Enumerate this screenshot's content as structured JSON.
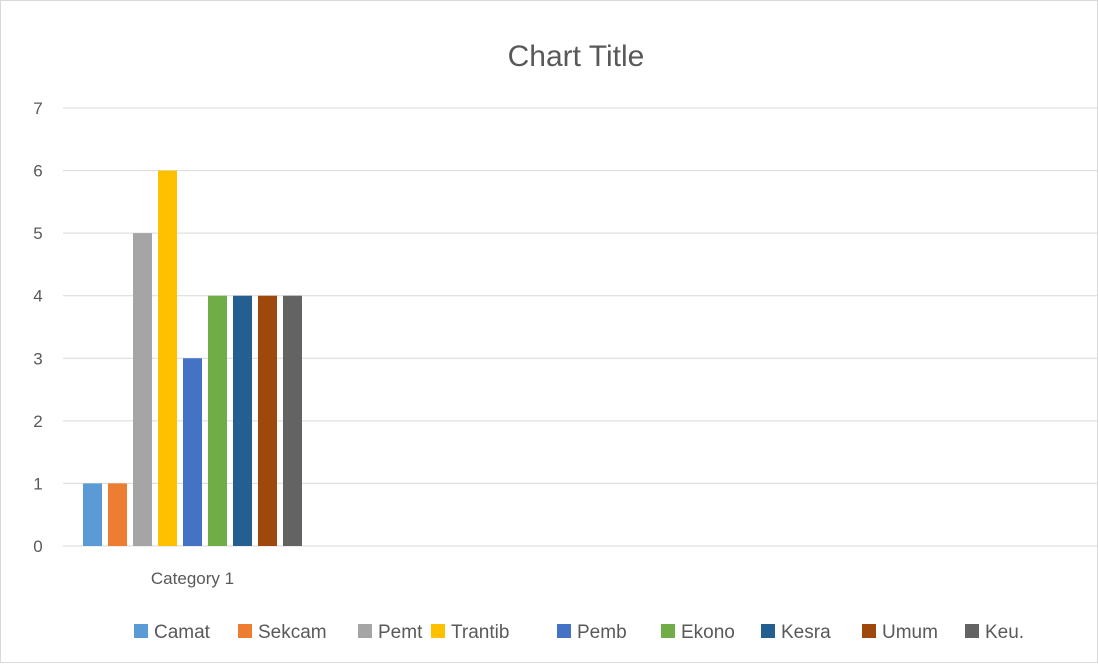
{
  "chart_data": {
    "type": "bar",
    "title": "Chart Title",
    "categories": [
      "Category 1"
    ],
    "ylim": [
      0,
      7
    ],
    "yticks": [
      0,
      1,
      2,
      3,
      4,
      5,
      6,
      7
    ],
    "grid": true,
    "legend_position": "bottom",
    "series": [
      {
        "name": "Camat",
        "values": [
          1
        ],
        "color": "#5b9bd5"
      },
      {
        "name": "Sekcam",
        "values": [
          1
        ],
        "color": "#ed7d31"
      },
      {
        "name": "Pemt",
        "values": [
          5
        ],
        "color": "#a5a5a5"
      },
      {
        "name": "Trantib",
        "values": [
          6
        ],
        "color": "#ffc000"
      },
      {
        "name": "Pemb",
        "values": [
          3
        ],
        "color": "#4472c4"
      },
      {
        "name": "Ekono",
        "values": [
          4
        ],
        "color": "#70ad47"
      },
      {
        "name": "Kesra",
        "values": [
          4
        ],
        "color": "#255e91"
      },
      {
        "name": "Umum",
        "values": [
          4
        ],
        "color": "#9e480e"
      },
      {
        "name": "Keu.",
        "values": [
          4
        ],
        "color": "#636363"
      }
    ]
  }
}
